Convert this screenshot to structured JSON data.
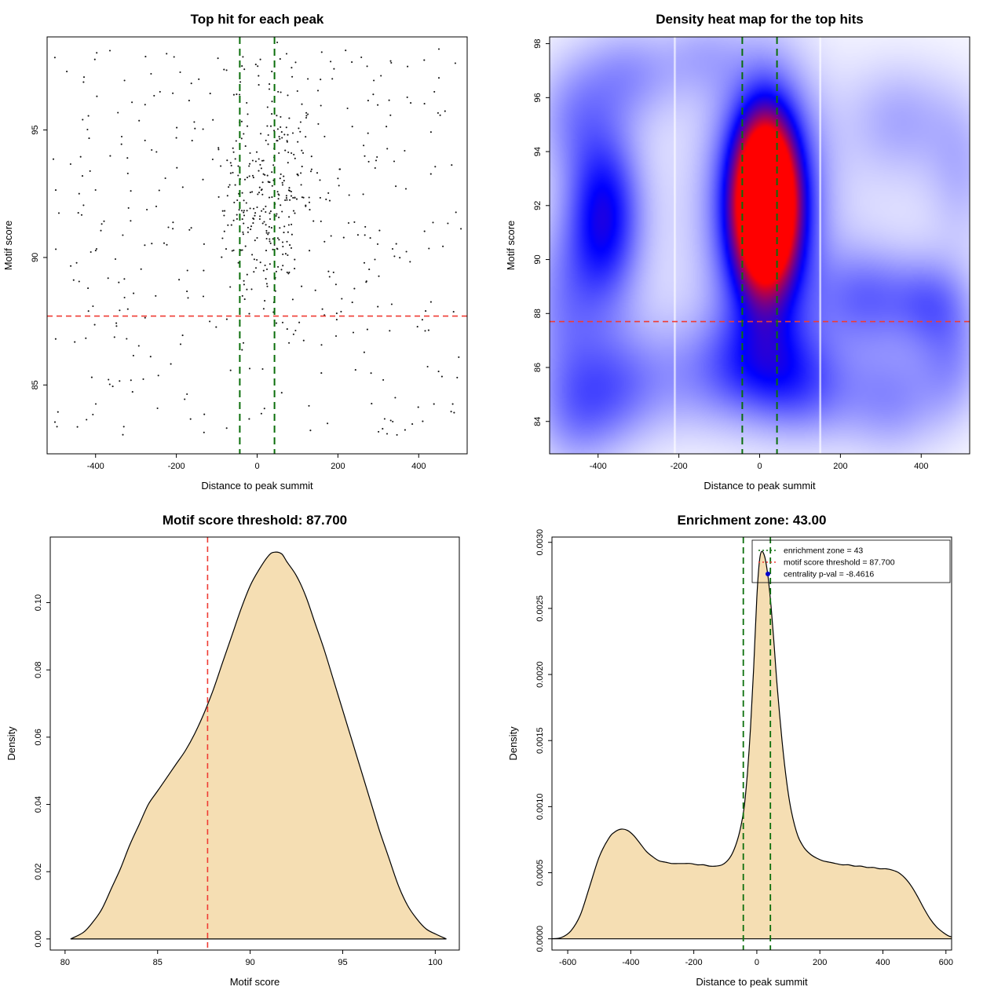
{
  "page": {
    "background": "#ffffff"
  },
  "chart_data": [
    {
      "id": "top-hits-scatter",
      "type": "scatter",
      "title": "Top hit for each peak",
      "xlabel": "Distance to peak summit",
      "ylabel": "Motif score",
      "xlim": [
        -520,
        520
      ],
      "ylim": [
        82.3,
        98.65
      ],
      "xticks": [
        "-400",
        "-200",
        "0",
        "200",
        "400"
      ],
      "yticks": [
        "85",
        "90",
        "95"
      ],
      "hlines": [
        {
          "v": 87.7,
          "color": "#ef3b33",
          "width": 1.6,
          "dash": "7,5",
          "label": "motif score threshold"
        }
      ],
      "vlines": [
        {
          "v": -43,
          "color": "#0b6e0b",
          "width": 2,
          "dash": "9,6",
          "label": "enrichment zone left"
        },
        {
          "v": 43,
          "color": "#0b6e0b",
          "width": 2,
          "dash": "9,6",
          "label": "enrichment zone right"
        }
      ],
      "points": {
        "seed": 7,
        "color": "#161616",
        "background": {
          "n": 380,
          "xmin": -505,
          "xmax": 505,
          "ymin": 83.0,
          "ymax": 98.2
        },
        "cluster": {
          "n": 270,
          "x_mean": 25,
          "x_sd": 55,
          "y_mean": 92.4,
          "y_sd": 2.2
        }
      }
    },
    {
      "id": "top-hits-heatmap",
      "type": "heatmap",
      "title": "Density heat map for the top hits",
      "xlabel": "Distance to peak summit",
      "ylabel": "Motif score",
      "xlim": [
        -520,
        520
      ],
      "ylim": [
        82.8,
        98.25
      ],
      "xticks": [
        "-400",
        "-200",
        "0",
        "200",
        "400"
      ],
      "yticks": [
        "84",
        "86",
        "88",
        "90",
        "92",
        "94",
        "96",
        "98"
      ],
      "colormap": [
        "#ffffff",
        "#0000ff",
        "#ff0000"
      ],
      "white_gaps_x": [
        -210,
        150
      ],
      "blobs": [
        [
          15,
          92.1,
          48,
          2.0,
          1.15
        ],
        [
          15,
          92.0,
          85,
          3.2,
          0.75
        ],
        [
          -385,
          91.6,
          65,
          2.3,
          0.5
        ],
        [
          -470,
          95.3,
          70,
          1.6,
          0.18
        ],
        [
          -320,
          96.9,
          90,
          1.3,
          0.2
        ],
        [
          -140,
          97.6,
          70,
          1.1,
          0.13
        ],
        [
          -490,
          88.3,
          70,
          2.2,
          0.2
        ],
        [
          -460,
          84.2,
          80,
          1.6,
          0.2
        ],
        [
          -350,
          85.3,
          90,
          1.6,
          0.24
        ],
        [
          -100,
          85.7,
          120,
          1.5,
          0.22
        ],
        [
          120,
          85.2,
          90,
          1.4,
          0.24
        ],
        [
          330,
          84.8,
          90,
          1.5,
          0.22
        ],
        [
          480,
          86.2,
          60,
          1.6,
          0.18
        ],
        [
          20,
          86.4,
          90,
          1.3,
          0.16
        ],
        [
          260,
          88.6,
          85,
          1.3,
          0.26
        ],
        [
          425,
          88.4,
          70,
          1.2,
          0.24
        ],
        [
          350,
          95.2,
          95,
          1.5,
          0.16
        ],
        [
          500,
          93.3,
          60,
          2.0,
          0.13
        ],
        [
          0,
          91.0,
          520,
          5.5,
          0.09
        ]
      ],
      "hlines": [
        {
          "v": 87.7,
          "color": "#ef3b33",
          "width": 1.6,
          "dash": "7,5",
          "label": "motif score threshold"
        }
      ],
      "vlines": [
        {
          "v": -43,
          "color": "#0b6e0b",
          "width": 2,
          "dash": "9,6",
          "label": "enrichment zone left"
        },
        {
          "v": 43,
          "color": "#0b6e0b",
          "width": 2,
          "dash": "9,6",
          "label": "enrichment zone right"
        }
      ]
    },
    {
      "id": "motif-score-density",
      "type": "area",
      "title": "Motif score threshold: 87.700",
      "xlabel": "Motif score",
      "ylabel": "Density",
      "xlim": [
        79.2,
        101.3
      ],
      "ylim": [
        -0.0033,
        0.1195
      ],
      "xticks": [
        "80",
        "85",
        "90",
        "95",
        "100"
      ],
      "yticks": [
        "0.00",
        "0.02",
        "0.04",
        "0.06",
        "0.08",
        "0.10"
      ],
      "fill": "#f5deb3",
      "stroke": "#000000",
      "vlines": [
        {
          "v": 87.7,
          "color": "#ef3b33",
          "width": 1.6,
          "dash": "7,5",
          "label": "motif score threshold"
        }
      ],
      "curve": {
        "x": [
          80.3,
          81,
          81.5,
          82,
          82.5,
          83,
          83.5,
          84,
          84.5,
          85,
          85.5,
          86,
          86.5,
          87,
          87.5,
          88,
          88.5,
          89,
          89.5,
          90,
          90.5,
          91,
          91.3,
          91.7,
          92,
          92.5,
          93,
          93.5,
          94,
          94.5,
          95,
          95.5,
          96,
          96.5,
          97,
          97.5,
          98,
          98.5,
          99,
          99.5,
          100,
          100.6
        ],
        "y": [
          0,
          0.002,
          0.005,
          0.009,
          0.015,
          0.021,
          0.028,
          0.034,
          0.04,
          0.044,
          0.048,
          0.052,
          0.056,
          0.061,
          0.067,
          0.074,
          0.082,
          0.09,
          0.098,
          0.105,
          0.11,
          0.114,
          0.115,
          0.1145,
          0.112,
          0.108,
          0.102,
          0.094,
          0.086,
          0.077,
          0.068,
          0.059,
          0.05,
          0.041,
          0.032,
          0.024,
          0.016,
          0.01,
          0.006,
          0.003,
          0.0015,
          0
        ]
      }
    },
    {
      "id": "enrichment-zone-density",
      "type": "area",
      "title": "Enrichment zone: 43.00",
      "xlabel": "Distance to peak summit",
      "ylabel": "Density",
      "xlim": [
        -650,
        618
      ],
      "ylim": [
        -8.5e-05,
        0.00304
      ],
      "xticks": [
        "-600",
        "-400",
        "-200",
        "0",
        "200",
        "400",
        "600"
      ],
      "yticks": [
        "0.0000",
        "0.0005",
        "0.0010",
        "0.0015",
        "0.0020",
        "0.0025",
        "0.0030"
      ],
      "fill": "#f5deb3",
      "stroke": "#000000",
      "vlines": [
        {
          "v": -43,
          "color": "#0b6e0b",
          "width": 1.8,
          "dash": "8,5",
          "label": "enrichment zone left"
        },
        {
          "v": 43,
          "color": "#0b6e0b",
          "width": 1.8,
          "dash": "8,5",
          "label": "enrichment zone right"
        }
      ],
      "legend": {
        "items": [
          {
            "swatch": "line",
            "color": "#0b6e0b",
            "dash": "2,3",
            "label": "enrichment zone = 43"
          },
          {
            "swatch": "line",
            "color": "#ef3b33",
            "dash": "2,3",
            "label": "motif score threshold = 87.700"
          },
          {
            "swatch": "point",
            "color": "#0000cd",
            "label": "centrality p-val = -8.4616"
          }
        ]
      },
      "curve": {
        "x": [
          -650,
          -620,
          -590,
          -560,
          -530,
          -500,
          -470,
          -450,
          -430,
          -410,
          -390,
          -370,
          -350,
          -330,
          -310,
          -290,
          -270,
          -250,
          -230,
          -210,
          -190,
          -170,
          -150,
          -130,
          -110,
          -90,
          -75,
          -60,
          -50,
          -40,
          -30,
          -20,
          -10,
          0,
          8,
          15,
          25,
          35,
          45,
          55,
          65,
          80,
          95,
          110,
          130,
          150,
          170,
          190,
          210,
          230,
          250,
          270,
          290,
          310,
          330,
          350,
          370,
          390,
          410,
          430,
          450,
          470,
          490,
          510,
          530,
          550,
          570,
          590,
          610,
          630,
          650
        ],
        "y": [
          0,
          1e-05,
          6e-05,
          0.00018,
          0.0004,
          0.00062,
          0.00076,
          0.00081,
          0.00083,
          0.00082,
          0.00078,
          0.00072,
          0.00066,
          0.00062,
          0.00059,
          0.00058,
          0.00057,
          0.00057,
          0.00057,
          0.00057,
          0.00056,
          0.00056,
          0.00055,
          0.00055,
          0.00056,
          0.0006,
          0.00066,
          0.00076,
          0.00086,
          0.001,
          0.00125,
          0.0016,
          0.00205,
          0.00258,
          0.00285,
          0.00293,
          0.00289,
          0.00275,
          0.00252,
          0.00222,
          0.0019,
          0.0015,
          0.00118,
          0.00096,
          0.00078,
          0.00069,
          0.00064,
          0.00061,
          0.00059,
          0.00058,
          0.00057,
          0.00056,
          0.00056,
          0.00055,
          0.00055,
          0.00054,
          0.00054,
          0.00053,
          0.00053,
          0.00052,
          0.0005,
          0.00046,
          0.0004,
          0.00032,
          0.00023,
          0.00015,
          9e-05,
          5e-05,
          2e-05,
          1e-05,
          0
        ]
      }
    }
  ]
}
